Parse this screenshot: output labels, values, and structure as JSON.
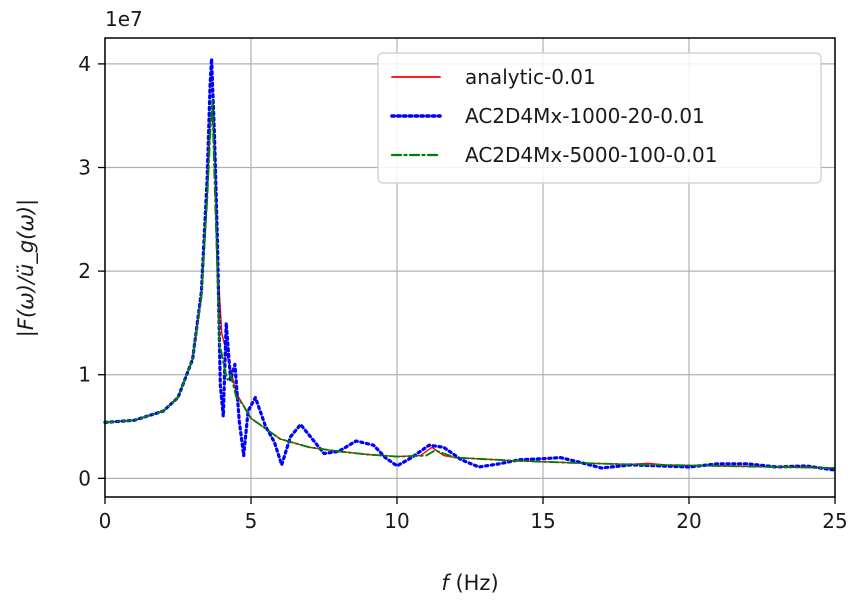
{
  "chart_data": {
    "type": "line",
    "title": "",
    "xlabel_italic": "f",
    "xlabel_unit": " (Hz)",
    "ylabel": "|F(ω)/ü_g(ω)|",
    "y_offset_label": "1e7",
    "xlim": [
      0,
      25
    ],
    "ylim": [
      -0.18,
      4.25
    ],
    "xticks": [
      0,
      5,
      10,
      15,
      20,
      25
    ],
    "yticks": [
      0,
      1,
      2,
      3,
      4
    ],
    "grid": true,
    "legend_position": "top-right",
    "series": [
      {
        "name": "analytic-0.01",
        "color": "#ff0000",
        "style": "solid",
        "points": [
          [
            0,
            0.54
          ],
          [
            1,
            0.56
          ],
          [
            2,
            0.65
          ],
          [
            2.5,
            0.78
          ],
          [
            3,
            1.15
          ],
          [
            3.3,
            1.75
          ],
          [
            3.5,
            2.7
          ],
          [
            3.6,
            3.4
          ],
          [
            3.7,
            3.62
          ],
          [
            3.78,
            3.0
          ],
          [
            3.85,
            2.1
          ],
          [
            4.0,
            1.4
          ],
          [
            4.5,
            0.82
          ],
          [
            5,
            0.58
          ],
          [
            6,
            0.38
          ],
          [
            7,
            0.3
          ],
          [
            8,
            0.26
          ],
          [
            9,
            0.23
          ],
          [
            10,
            0.21
          ],
          [
            10.8,
            0.22
          ],
          [
            11.2,
            0.3
          ],
          [
            11.6,
            0.22
          ],
          [
            12,
            0.2
          ],
          [
            14,
            0.17
          ],
          [
            16,
            0.15
          ],
          [
            18,
            0.135
          ],
          [
            18.6,
            0.145
          ],
          [
            19.2,
            0.13
          ],
          [
            21,
            0.12
          ],
          [
            23,
            0.11
          ],
          [
            25,
            0.1
          ]
        ]
      },
      {
        "name": "AC2D4Mx-1000-20-0.01",
        "color": "#0000ff",
        "style": "dotted",
        "points": [
          [
            0,
            0.54
          ],
          [
            1,
            0.56
          ],
          [
            2,
            0.65
          ],
          [
            2.5,
            0.78
          ],
          [
            3,
            1.15
          ],
          [
            3.3,
            1.8
          ],
          [
            3.5,
            2.9
          ],
          [
            3.6,
            3.8
          ],
          [
            3.65,
            4.05
          ],
          [
            3.75,
            3.3
          ],
          [
            3.85,
            2.3
          ],
          [
            3.95,
            0.9
          ],
          [
            4.05,
            0.6
          ],
          [
            4.15,
            1.5
          ],
          [
            4.3,
            0.95
          ],
          [
            4.45,
            1.1
          ],
          [
            4.6,
            0.55
          ],
          [
            4.75,
            0.22
          ],
          [
            4.9,
            0.65
          ],
          [
            5.15,
            0.78
          ],
          [
            5.5,
            0.5
          ],
          [
            5.8,
            0.35
          ],
          [
            6.05,
            0.13
          ],
          [
            6.35,
            0.4
          ],
          [
            6.7,
            0.52
          ],
          [
            7.1,
            0.38
          ],
          [
            7.5,
            0.24
          ],
          [
            8,
            0.26
          ],
          [
            8.6,
            0.36
          ],
          [
            9.2,
            0.32
          ],
          [
            9.6,
            0.2
          ],
          [
            10,
            0.12
          ],
          [
            10.5,
            0.2
          ],
          [
            11.1,
            0.32
          ],
          [
            11.6,
            0.3
          ],
          [
            12.2,
            0.18
          ],
          [
            12.8,
            0.11
          ],
          [
            13.5,
            0.14
          ],
          [
            14.2,
            0.18
          ],
          [
            15,
            0.19
          ],
          [
            15.6,
            0.2
          ],
          [
            16.2,
            0.16
          ],
          [
            17,
            0.1
          ],
          [
            18,
            0.13
          ],
          [
            19,
            0.12
          ],
          [
            20,
            0.11
          ],
          [
            21,
            0.14
          ],
          [
            22,
            0.14
          ],
          [
            23,
            0.11
          ],
          [
            24,
            0.12
          ],
          [
            25,
            0.08
          ]
        ]
      },
      {
        "name": "AC2D4Mx-5000-100-0.01",
        "color": "#008000",
        "style": "dashdot",
        "points": [
          [
            0,
            0.54
          ],
          [
            1,
            0.56
          ],
          [
            2,
            0.65
          ],
          [
            2.5,
            0.78
          ],
          [
            3,
            1.15
          ],
          [
            3.3,
            1.75
          ],
          [
            3.5,
            2.7
          ],
          [
            3.6,
            3.3
          ],
          [
            3.67,
            3.65
          ],
          [
            3.75,
            2.9
          ],
          [
            3.85,
            2.0
          ],
          [
            3.92,
            1.3
          ],
          [
            4.0,
            1.2
          ],
          [
            4.1,
            1.05
          ],
          [
            4.2,
            0.95
          ],
          [
            4.3,
            1.0
          ],
          [
            4.5,
            0.78
          ],
          [
            4.7,
            0.72
          ],
          [
            5,
            0.58
          ],
          [
            6,
            0.38
          ],
          [
            7,
            0.3
          ],
          [
            8,
            0.26
          ],
          [
            9,
            0.23
          ],
          [
            10,
            0.21
          ],
          [
            11,
            0.22
          ],
          [
            11.3,
            0.27
          ],
          [
            12,
            0.2
          ],
          [
            14,
            0.17
          ],
          [
            16,
            0.15
          ],
          [
            18,
            0.135
          ],
          [
            21,
            0.12
          ],
          [
            23,
            0.11
          ],
          [
            25,
            0.1
          ]
        ]
      }
    ]
  }
}
